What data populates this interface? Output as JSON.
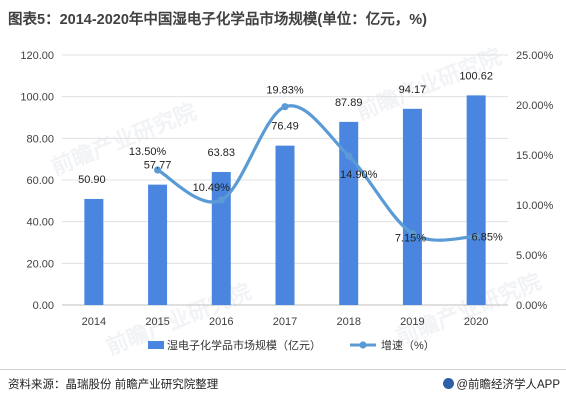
{
  "title": "图表5：2014-2020年中国湿电子化学品市场规模(单位：亿元，%)",
  "source": "资料来源：晶瑞股份 前瞻产业研究院整理",
  "brand": "@前瞻经济学人APP",
  "watermark": "前瞻产业研究院",
  "colors": {
    "bar": "#4a86e0",
    "line": "#5b9bd5",
    "grid": "#e0e0e0"
  },
  "chart_data": {
    "type": "bar",
    "categories": [
      "2014",
      "2015",
      "2016",
      "2017",
      "2018",
      "2019",
      "2020"
    ],
    "series": [
      {
        "name": "湿电子化学品市场规模（亿元）",
        "type": "bar",
        "axis": "left",
        "values": [
          50.9,
          57.77,
          63.83,
          76.49,
          87.89,
          94.17,
          100.62
        ],
        "labels": [
          "50.90",
          "57.77",
          "63.83",
          "76.49",
          "87.89",
          "94.17",
          "100.62"
        ]
      },
      {
        "name": "增速（%）",
        "type": "line",
        "axis": "right",
        "values": [
          null,
          13.5,
          10.49,
          19.83,
          14.9,
          7.15,
          6.85
        ],
        "labels": [
          "",
          "13.50%",
          "10.49%",
          "19.83%",
          "14.90%",
          "7.15%",
          "6.85%"
        ]
      }
    ],
    "y_left": {
      "min": 0,
      "max": 120,
      "step": 20,
      "ticks": [
        "0.00",
        "20.00",
        "40.00",
        "60.00",
        "80.00",
        "100.00",
        "120.00"
      ]
    },
    "y_right": {
      "min": 0,
      "max": 25,
      "step": 5,
      "ticks": [
        "0.00%",
        "5.00%",
        "10.00%",
        "15.00%",
        "20.00%",
        "25.00%"
      ]
    },
    "grid": true,
    "legend_position": "bottom"
  }
}
